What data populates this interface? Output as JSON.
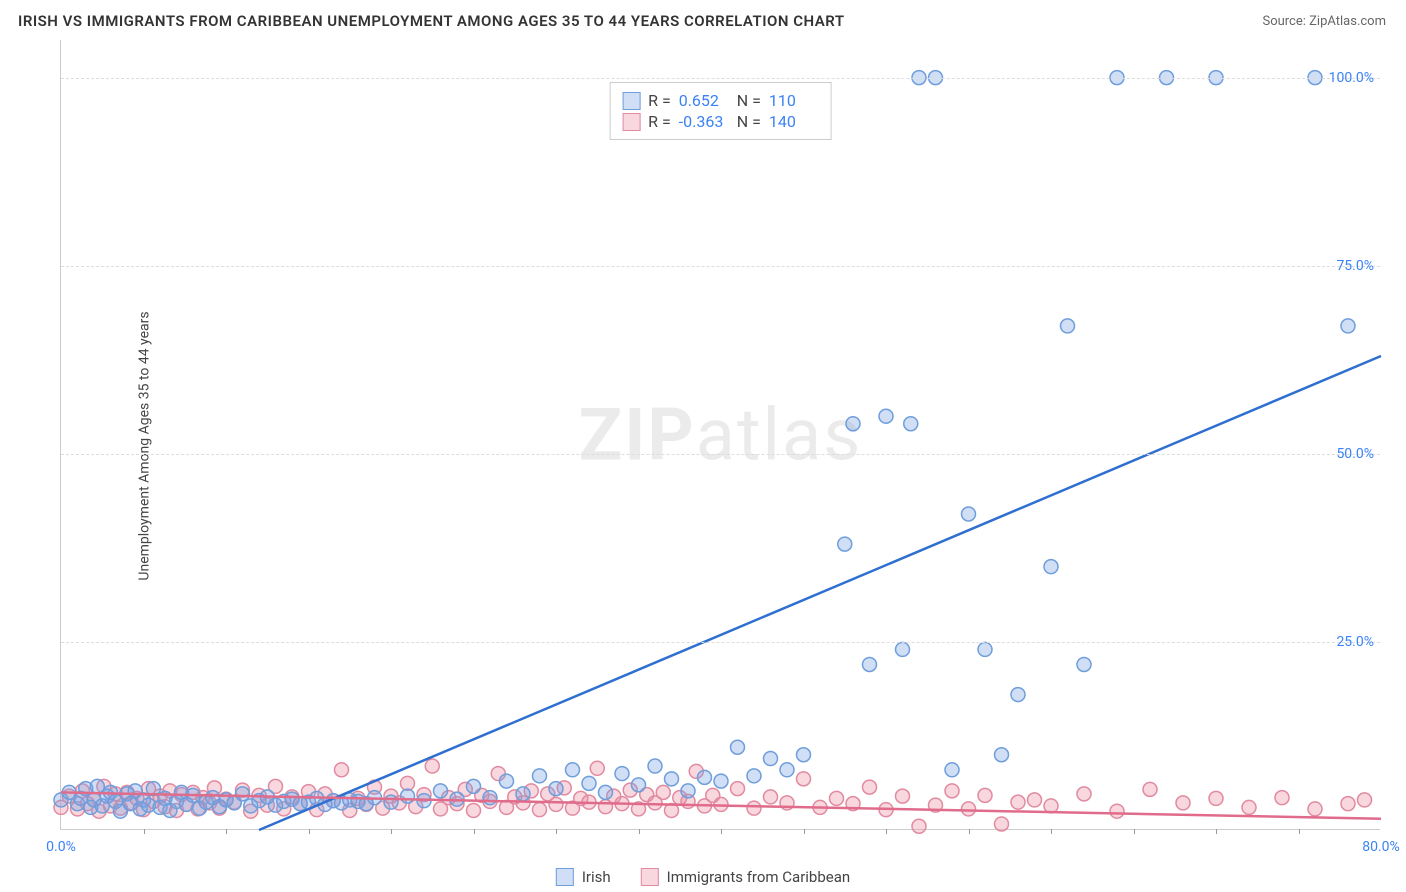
{
  "title": "IRISH VS IMMIGRANTS FROM CARIBBEAN UNEMPLOYMENT AMONG AGES 35 TO 44 YEARS CORRELATION CHART",
  "source_label": "Source: ",
  "source_name": "ZipAtlas.com",
  "ylabel": "Unemployment Among Ages 35 to 44 years",
  "watermark_bold": "ZIP",
  "watermark_light": "atlas",
  "chart": {
    "type": "scatter",
    "xlim": [
      0,
      80
    ],
    "ylim": [
      0,
      105
    ],
    "xticks": [
      0,
      80
    ],
    "xtick_labels": [
      "0.0%",
      "80.0%"
    ],
    "xtick_minor": [
      5,
      10,
      15,
      20,
      25,
      30,
      35,
      40,
      45,
      50,
      55,
      60,
      65,
      70,
      75
    ],
    "yticks": [
      25,
      50,
      75,
      100
    ],
    "ytick_labels": [
      "25.0%",
      "50.0%",
      "75.0%",
      "100.0%"
    ],
    "ytick_color": "#3b82f6",
    "xtick_color": "#3b82f6",
    "grid_color": "#dddddd",
    "background_color": "#ffffff",
    "marker_radius": 7,
    "marker_stroke_width": 1.5,
    "line_width": 2.5,
    "series": [
      {
        "name": "Irish",
        "fill": "rgba(120,160,230,0.35)",
        "stroke": "#6f9edb",
        "line_color": "#2f6fd0",
        "R": "0.652",
        "N": "110",
        "trend": {
          "x1": 12,
          "y1": 0,
          "x2": 80,
          "y2": 63
        },
        "points": [
          [
            0,
            4
          ],
          [
            0.5,
            5
          ],
          [
            1,
            3.5
          ],
          [
            1.2,
            4.2
          ],
          [
            1.5,
            5.5
          ],
          [
            1.8,
            3
          ],
          [
            2,
            4
          ],
          [
            2.2,
            5.8
          ],
          [
            2.5,
            3.2
          ],
          [
            2.8,
            4.5
          ],
          [
            3,
            5
          ],
          [
            3.3,
            3.8
          ],
          [
            3.6,
            2.5
          ],
          [
            4,
            4.8
          ],
          [
            4.2,
            3.5
          ],
          [
            4.5,
            5.2
          ],
          [
            4.8,
            2.8
          ],
          [
            5,
            4
          ],
          [
            5.3,
            3.3
          ],
          [
            5.6,
            5.5
          ],
          [
            6,
            3
          ],
          [
            6.3,
            4.2
          ],
          [
            6.6,
            2.6
          ],
          [
            7,
            3.8
          ],
          [
            7.3,
            5
          ],
          [
            7.6,
            3.4
          ],
          [
            8,
            4.6
          ],
          [
            8.4,
            2.9
          ],
          [
            8.8,
            3.7
          ],
          [
            9.2,
            4.3
          ],
          [
            9.6,
            3.1
          ],
          [
            10,
            4
          ],
          [
            10.5,
            3.6
          ],
          [
            11,
            4.8
          ],
          [
            11.5,
            3.2
          ],
          [
            12,
            3.9
          ],
          [
            12.5,
            4.4
          ],
          [
            13,
            3.3
          ],
          [
            13.5,
            3.8
          ],
          [
            14,
            4.1
          ],
          [
            14.5,
            3.5
          ],
          [
            15,
            3.7
          ],
          [
            15.5,
            4.2
          ],
          [
            16,
            3.4
          ],
          [
            16.5,
            3.9
          ],
          [
            17,
            3.6
          ],
          [
            17.5,
            4
          ],
          [
            18,
            3.8
          ],
          [
            18.5,
            3.5
          ],
          [
            19,
            4.3
          ],
          [
            20,
            3.7
          ],
          [
            21,
            4.5
          ],
          [
            22,
            3.9
          ],
          [
            23,
            5.2
          ],
          [
            24,
            4.1
          ],
          [
            25,
            5.8
          ],
          [
            26,
            4.3
          ],
          [
            27,
            6.5
          ],
          [
            28,
            4.8
          ],
          [
            29,
            7.2
          ],
          [
            30,
            5.5
          ],
          [
            31,
            8
          ],
          [
            32,
            6.2
          ],
          [
            33,
            5
          ],
          [
            34,
            7.5
          ],
          [
            35,
            6
          ],
          [
            36,
            8.5
          ],
          [
            37,
            6.8
          ],
          [
            38,
            5.2
          ],
          [
            39,
            7
          ],
          [
            40,
            6.5
          ],
          [
            41,
            11
          ],
          [
            42,
            7.2
          ],
          [
            43,
            9.5
          ],
          [
            44,
            8
          ],
          [
            45,
            10
          ],
          [
            47.5,
            38
          ],
          [
            48,
            54
          ],
          [
            49,
            22
          ],
          [
            50,
            55
          ],
          [
            51,
            24
          ],
          [
            51.5,
            54
          ],
          [
            52,
            100
          ],
          [
            53,
            100
          ],
          [
            54,
            8
          ],
          [
            55,
            42
          ],
          [
            56,
            24
          ],
          [
            57,
            10
          ],
          [
            58,
            18
          ],
          [
            60,
            35
          ],
          [
            61,
            67
          ],
          [
            62,
            22
          ],
          [
            64,
            100
          ],
          [
            67,
            100
          ],
          [
            70,
            100
          ],
          [
            76,
            100
          ],
          [
            78,
            67
          ]
        ]
      },
      {
        "name": "Immigrants from Caribbean",
        "fill": "rgba(235,140,160,0.35)",
        "stroke": "#e18aa0",
        "line_color": "#e06b8a",
        "R": "-0.363",
        "N": "140",
        "trend": {
          "x1": 0,
          "y1": 5,
          "x2": 80,
          "y2": 1.5
        },
        "points": [
          [
            0,
            3
          ],
          [
            0.5,
            4.5
          ],
          [
            1,
            2.8
          ],
          [
            1.3,
            5.2
          ],
          [
            1.6,
            3.5
          ],
          [
            2,
            4
          ],
          [
            2.3,
            2.5
          ],
          [
            2.6,
            5.8
          ],
          [
            3,
            3.2
          ],
          [
            3.3,
            4.8
          ],
          [
            3.6,
            2.9
          ],
          [
            4,
            5
          ],
          [
            4.3,
            3.6
          ],
          [
            4.6,
            4.2
          ],
          [
            5,
            2.7
          ],
          [
            5.3,
            5.5
          ],
          [
            5.6,
            3.8
          ],
          [
            6,
            4.5
          ],
          [
            6.3,
            3.1
          ],
          [
            6.6,
            5.2
          ],
          [
            7,
            2.6
          ],
          [
            7.3,
            4.7
          ],
          [
            7.6,
            3.4
          ],
          [
            8,
            5
          ],
          [
            8.3,
            2.8
          ],
          [
            8.6,
            4.3
          ],
          [
            9,
            3.6
          ],
          [
            9.3,
            5.6
          ],
          [
            9.6,
            2.9
          ],
          [
            10,
            4.1
          ],
          [
            10.5,
            3.7
          ],
          [
            11,
            5.3
          ],
          [
            11.5,
            2.5
          ],
          [
            12,
            4.6
          ],
          [
            12.5,
            3.3
          ],
          [
            13,
            5.8
          ],
          [
            13.5,
            2.8
          ],
          [
            14,
            4.4
          ],
          [
            14.5,
            3.5
          ],
          [
            15,
            5.1
          ],
          [
            15.5,
            2.7
          ],
          [
            16,
            4.8
          ],
          [
            16.5,
            3.9
          ],
          [
            17,
            8
          ],
          [
            17.5,
            2.6
          ],
          [
            18,
            4.2
          ],
          [
            18.5,
            3.4
          ],
          [
            19,
            5.7
          ],
          [
            19.5,
            2.9
          ],
          [
            20,
            4.5
          ],
          [
            20.5,
            3.6
          ],
          [
            21,
            6.2
          ],
          [
            21.5,
            3.1
          ],
          [
            22,
            4.7
          ],
          [
            22.5,
            8.5
          ],
          [
            23,
            2.8
          ],
          [
            23.5,
            4.3
          ],
          [
            24,
            3.5
          ],
          [
            24.5,
            5.4
          ],
          [
            25,
            2.6
          ],
          [
            25.5,
            4.6
          ],
          [
            26,
            3.8
          ],
          [
            26.5,
            7.5
          ],
          [
            27,
            3
          ],
          [
            27.5,
            4.4
          ],
          [
            28,
            3.6
          ],
          [
            28.5,
            5.2
          ],
          [
            29,
            2.7
          ],
          [
            29.5,
            4.8
          ],
          [
            30,
            3.4
          ],
          [
            30.5,
            5.6
          ],
          [
            31,
            2.9
          ],
          [
            31.5,
            4.2
          ],
          [
            32,
            3.7
          ],
          [
            32.5,
            8.2
          ],
          [
            33,
            3.1
          ],
          [
            33.5,
            4.5
          ],
          [
            34,
            3.5
          ],
          [
            34.5,
            5.3
          ],
          [
            35,
            2.8
          ],
          [
            35.5,
            4.7
          ],
          [
            36,
            3.6
          ],
          [
            36.5,
            5
          ],
          [
            37,
            2.6
          ],
          [
            37.5,
            4.3
          ],
          [
            38,
            3.8
          ],
          [
            38.5,
            7.8
          ],
          [
            39,
            3.2
          ],
          [
            39.5,
            4.6
          ],
          [
            40,
            3.4
          ],
          [
            41,
            5.5
          ],
          [
            42,
            2.9
          ],
          [
            43,
            4.4
          ],
          [
            44,
            3.6
          ],
          [
            45,
            6.8
          ],
          [
            46,
            3
          ],
          [
            47,
            4.2
          ],
          [
            48,
            3.5
          ],
          [
            49,
            5.7
          ],
          [
            50,
            2.7
          ],
          [
            51,
            4.5
          ],
          [
            52,
            0.5
          ],
          [
            53,
            3.3
          ],
          [
            54,
            5.2
          ],
          [
            55,
            2.8
          ],
          [
            56,
            4.6
          ],
          [
            57,
            0.8
          ],
          [
            58,
            3.7
          ],
          [
            59,
            4
          ],
          [
            60,
            3.2
          ],
          [
            62,
            4.8
          ],
          [
            64,
            2.5
          ],
          [
            66,
            5.4
          ],
          [
            68,
            3.6
          ],
          [
            70,
            4.2
          ],
          [
            72,
            3
          ],
          [
            74,
            4.3
          ],
          [
            76,
            2.8
          ],
          [
            78,
            3.5
          ],
          [
            79,
            4
          ]
        ]
      }
    ]
  },
  "stats_labels": {
    "R": "R =",
    "N": "N ="
  },
  "legend": {
    "series1": "Irish",
    "series2": "Immigrants from Caribbean"
  }
}
